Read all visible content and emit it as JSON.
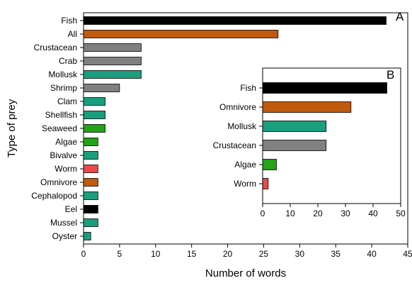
{
  "chart_data": [
    {
      "type": "bar",
      "orientation": "horizontal",
      "panel": "A",
      "xlabel": "Number of words",
      "ylabel": "Type of prey",
      "xlim": [
        0,
        45
      ],
      "xticks": [
        0,
        5,
        10,
        15,
        20,
        25,
        30,
        35,
        40,
        45
      ],
      "grid": false,
      "categories": [
        "Fish",
        "All",
        "Crustacean",
        "Crab",
        "Mollusk",
        "Shrimp",
        "Clam",
        "Shellfish",
        "Seaweed",
        "Algae",
        "Bivalve",
        "Worm",
        "Omnivore",
        "Cephalopod",
        "Eel",
        "Mussel",
        "Oyster"
      ],
      "values": [
        42,
        27,
        8,
        8,
        8,
        5,
        3,
        3,
        3,
        2,
        2,
        2,
        2,
        2,
        2,
        2,
        1
      ],
      "colors": [
        "#000000",
        "#c05a0c",
        "#808080",
        "#808080",
        "#1b9e7e",
        "#808080",
        "#1b9e7e",
        "#1b9e7e",
        "#22a318",
        "#22a318",
        "#1b9e7e",
        "#ee4848",
        "#c05a0c",
        "#1b9e7e",
        "#000000",
        "#1b9e7e",
        "#1b9e7e"
      ]
    },
    {
      "type": "bar",
      "orientation": "horizontal",
      "panel": "B",
      "xlim": [
        0,
        50
      ],
      "xticks": [
        0,
        10,
        20,
        30,
        40,
        50
      ],
      "grid": false,
      "categories": [
        "Fish",
        "Omnivore",
        "Mollusk",
        "Crustacean",
        "Algae",
        "Worm"
      ],
      "values": [
        45,
        32,
        23,
        23,
        5,
        2
      ],
      "colors": [
        "#000000",
        "#c05a0c",
        "#1b9e7e",
        "#808080",
        "#22a318",
        "#ee4848"
      ]
    }
  ]
}
